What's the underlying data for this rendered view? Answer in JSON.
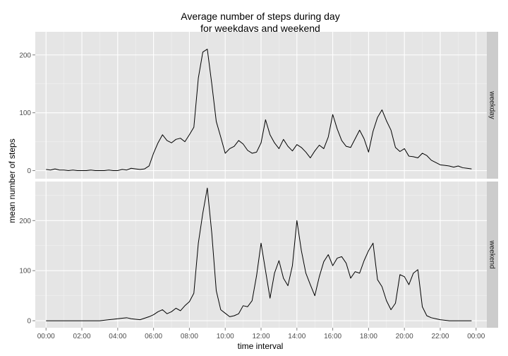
{
  "chart_data": {
    "type": "line",
    "title": "Average number of steps during day",
    "subtitle": "for weekdays and weekend",
    "xlabel": "time interval",
    "ylabel": "mean number of steps",
    "x_ticks": [
      "00:00",
      "02:00",
      "04:00",
      "06:00",
      "08:00",
      "10:00",
      "12:00",
      "14:00",
      "16:00",
      "18:00",
      "20:00",
      "22:00",
      "00:00"
    ],
    "x_unit": "hours",
    "xlim": [
      -0.6,
      24.6
    ],
    "y_ticks": [
      0,
      100,
      200
    ],
    "colors": {
      "panel": "#e5e5e5",
      "grid": "#ffffff",
      "strip": "#cccccc",
      "line": "#000000"
    },
    "panels": [
      {
        "name": "weekday",
        "ylim": [
          -14,
          240
        ],
        "x": [
          0,
          0.25,
          0.5,
          0.75,
          1,
          1.25,
          1.5,
          1.75,
          2,
          2.25,
          2.5,
          2.75,
          3,
          3.25,
          3.5,
          3.75,
          4,
          4.25,
          4.5,
          4.75,
          5,
          5.25,
          5.5,
          5.75,
          6,
          6.25,
          6.5,
          6.75,
          7,
          7.25,
          7.5,
          7.75,
          8,
          8.25,
          8.5,
          8.75,
          9,
          9.25,
          9.5,
          9.75,
          10,
          10.25,
          10.5,
          10.75,
          11,
          11.25,
          11.5,
          11.75,
          12,
          12.25,
          12.5,
          12.75,
          13,
          13.25,
          13.5,
          13.75,
          14,
          14.25,
          14.5,
          14.75,
          15,
          15.25,
          15.5,
          15.75,
          16,
          16.25,
          16.5,
          16.75,
          17,
          17.25,
          17.5,
          17.75,
          18,
          18.25,
          18.5,
          18.75,
          19,
          19.25,
          19.5,
          19.75,
          20,
          20.25,
          20.5,
          20.75,
          21,
          21.25,
          21.5,
          21.75,
          22,
          22.25,
          22.5,
          22.75,
          23,
          23.25,
          23.5,
          23.75
        ],
        "y": [
          2,
          1,
          3,
          1,
          1,
          0,
          1,
          0,
          0,
          0,
          1,
          0,
          0,
          0,
          1,
          0,
          0,
          2,
          1,
          4,
          3,
          2,
          3,
          8,
          30,
          48,
          62,
          52,
          48,
          54,
          56,
          50,
          62,
          75,
          160,
          205,
          210,
          150,
          85,
          58,
          30,
          38,
          42,
          52,
          46,
          35,
          30,
          32,
          48,
          88,
          62,
          48,
          38,
          54,
          42,
          34,
          45,
          40,
          32,
          22,
          34,
          44,
          38,
          58,
          97,
          72,
          52,
          42,
          40,
          55,
          70,
          55,
          32,
          68,
          92,
          105,
          86,
          70,
          40,
          33,
          38,
          25,
          24,
          22,
          30,
          26,
          18,
          14,
          10,
          9,
          8,
          6,
          8,
          5,
          4,
          3
        ]
      },
      {
        "name": "weekend",
        "ylim": [
          -14,
          278
        ],
        "x": [
          0,
          0.25,
          0.5,
          0.75,
          1,
          1.25,
          1.5,
          1.75,
          2,
          2.25,
          2.5,
          2.75,
          3,
          3.25,
          3.5,
          3.75,
          4,
          4.25,
          4.5,
          4.75,
          5,
          5.25,
          5.5,
          5.75,
          6,
          6.25,
          6.5,
          6.75,
          7,
          7.25,
          7.5,
          7.75,
          8,
          8.25,
          8.5,
          8.75,
          9,
          9.25,
          9.5,
          9.75,
          10,
          10.25,
          10.5,
          10.75,
          11,
          11.25,
          11.5,
          11.75,
          12,
          12.25,
          12.5,
          12.75,
          13,
          13.25,
          13.5,
          13.75,
          14,
          14.25,
          14.5,
          14.75,
          15,
          15.25,
          15.5,
          15.75,
          16,
          16.25,
          16.5,
          16.75,
          17,
          17.25,
          17.5,
          17.75,
          18,
          18.25,
          18.5,
          18.75,
          19,
          19.25,
          19.5,
          19.75,
          20,
          20.25,
          20.5,
          20.75,
          21,
          21.25,
          21.5,
          21.75,
          22,
          22.25,
          22.5,
          22.75,
          23,
          23.25,
          23.5,
          23.75
        ],
        "y": [
          0,
          0,
          0,
          0,
          0,
          0,
          0,
          0,
          0,
          0,
          0,
          0,
          0,
          1,
          2,
          3,
          4,
          5,
          6,
          4,
          3,
          2,
          5,
          8,
          12,
          18,
          22,
          14,
          18,
          25,
          20,
          30,
          38,
          55,
          155,
          215,
          265,
          175,
          60,
          22,
          15,
          8,
          10,
          14,
          30,
          28,
          40,
          90,
          155,
          100,
          45,
          95,
          120,
          85,
          70,
          110,
          200,
          140,
          95,
          72,
          50,
          88,
          118,
          132,
          110,
          125,
          128,
          115,
          85,
          98,
          95,
          120,
          140,
          155,
          82,
          68,
          40,
          22,
          35,
          92,
          88,
          72,
          95,
          102,
          28,
          10,
          6,
          4,
          2,
          1,
          0,
          0,
          0,
          0,
          0,
          0
        ]
      }
    ]
  }
}
